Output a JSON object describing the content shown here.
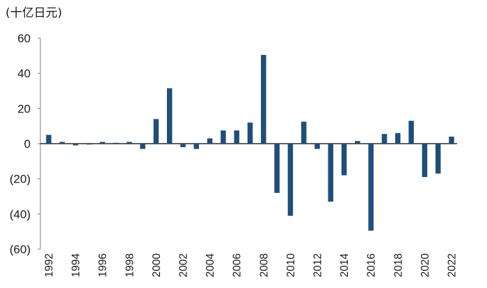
{
  "chart_data": {
    "type": "bar",
    "unit_label": "(十亿日元)",
    "categories": [
      "1992",
      "1993",
      "1994",
      "1995",
      "1996",
      "1997",
      "1998",
      "1999",
      "2000",
      "2001",
      "2002",
      "2003",
      "2004",
      "2005",
      "2006",
      "2007",
      "2008",
      "2009",
      "2010",
      "2011",
      "2012",
      "2013",
      "2014",
      "2015",
      "2016",
      "2017",
      "2018",
      "2019",
      "2020",
      "2021",
      "2022"
    ],
    "x_tick_labels": [
      "1992",
      "1994",
      "1996",
      "1998",
      "2000",
      "2002",
      "2004",
      "2006",
      "2008",
      "2010",
      "2012",
      "2014",
      "2016",
      "2018",
      "2020",
      "2022"
    ],
    "values": [
      5,
      1,
      -1,
      -0.5,
      1,
      0.5,
      1,
      -3,
      14,
      31.5,
      -2,
      -3,
      3,
      7.5,
      7.5,
      12,
      50.5,
      -28,
      -41,
      12.5,
      -3,
      -33,
      -18,
      1.5,
      -49.5,
      5.5,
      6,
      13,
      -19,
      -17,
      4
    ],
    "ylim": [
      -60,
      60
    ],
    "y_ticks": [
      60,
      40,
      20,
      0,
      -20,
      -40,
      -60
    ],
    "y_tick_labels": [
      "60",
      "40",
      "20",
      "0",
      "(20)",
      "(40)",
      "(60)"
    ],
    "bar_color": "#1f4e79",
    "xlabel": "",
    "ylabel": ""
  }
}
